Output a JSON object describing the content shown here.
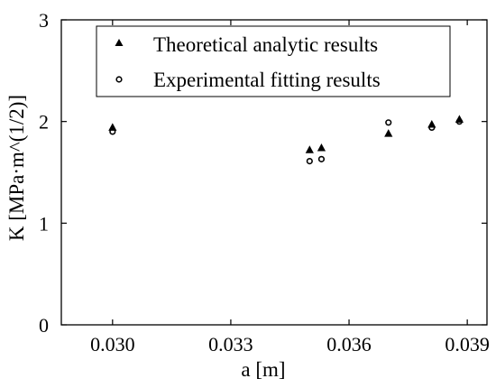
{
  "chart_data": {
    "type": "scatter",
    "title": "",
    "xlabel": "a [m]",
    "ylabel": "K [MPa·m^(1/2)]",
    "xlim": [
      0.0287,
      0.0395
    ],
    "ylim": [
      0,
      3
    ],
    "xticks": [
      0.03,
      0.033,
      0.036,
      0.039
    ],
    "xtick_labels": [
      "0.030",
      "0.033",
      "0.036",
      "0.039"
    ],
    "yticks": [
      0,
      1,
      2,
      3
    ],
    "ytick_labels": [
      "0",
      "1",
      "2",
      "3"
    ],
    "grid": false,
    "legend_position": "top-right",
    "series": [
      {
        "name": "Theoretical analytic results",
        "marker": "triangle",
        "color": "#000000",
        "x": [
          0.03,
          0.035,
          0.0353,
          0.037,
          0.0381,
          0.0388
        ],
        "y": [
          1.94,
          1.72,
          1.74,
          1.88,
          1.97,
          2.02
        ]
      },
      {
        "name": "Experimental fitting results",
        "marker": "circle-open",
        "color": "#000000",
        "x": [
          0.03,
          0.035,
          0.0353,
          0.037,
          0.0381,
          0.0388
        ],
        "y": [
          1.9,
          1.61,
          1.63,
          1.99,
          1.94,
          2.0
        ]
      }
    ]
  }
}
